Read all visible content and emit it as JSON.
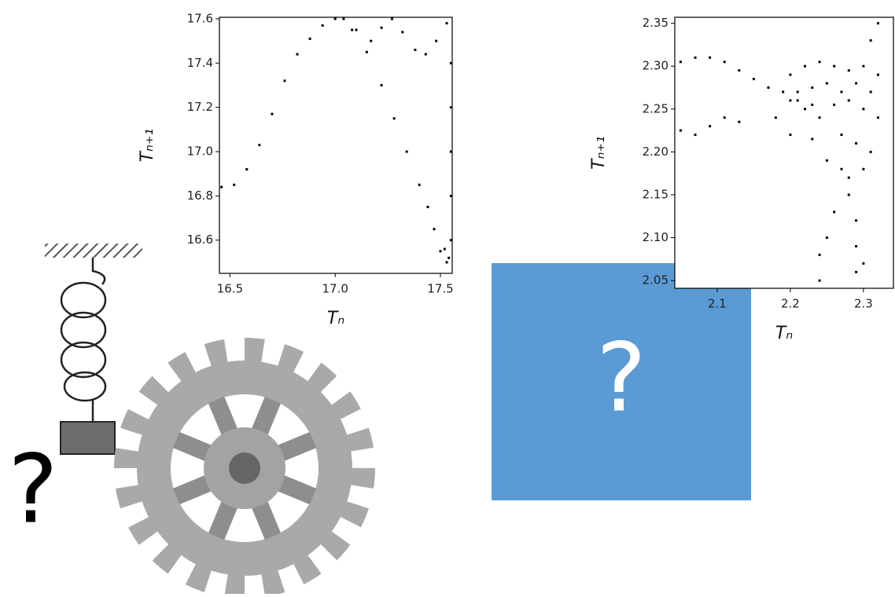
{
  "chart_data": [
    {
      "type": "scatter",
      "xlabel": "Tₙ",
      "ylabel": "Tₙ₊₁",
      "color": "#000000",
      "xlim": [
        16.45,
        17.556
      ],
      "ylim": [
        16.45,
        17.607
      ],
      "xticks": [
        16.5,
        {
          "value": 17,
          "label": "17.0"
        },
        17.5
      ],
      "yticks": [
        16.6,
        16.8,
        {
          "value": 17,
          "label": "17.0"
        },
        17.2,
        17.4,
        17.6
      ],
      "x": [
        16.46,
        16.52,
        16.58,
        16.64,
        16.7,
        16.76,
        16.82,
        16.88,
        16.94,
        17.0,
        17.04,
        17.08,
        17.15,
        17.22,
        17.28,
        17.34,
        17.4,
        17.44,
        17.47,
        17.5,
        17.53,
        17.1,
        17.17,
        17.22,
        17.27,
        17.32,
        17.38,
        17.43,
        17.48,
        17.53,
        17.55,
        17.55,
        17.55,
        17.55,
        17.55,
        17.54,
        17.52
      ],
      "values": [
        16.84,
        16.85,
        16.92,
        17.03,
        17.17,
        17.32,
        17.44,
        17.51,
        17.57,
        17.6,
        17.6,
        17.55,
        17.45,
        17.3,
        17.15,
        17.0,
        16.85,
        16.75,
        16.65,
        16.55,
        16.5,
        17.55,
        17.5,
        17.56,
        17.6,
        17.54,
        17.46,
        17.44,
        17.5,
        17.58,
        17.4,
        17.2,
        17.0,
        16.8,
        16.6,
        16.52,
        16.56
      ]
    },
    {
      "type": "scatter",
      "xlabel": "Tₙ",
      "ylabel": "Tₙ₊₁",
      "color": "#000000",
      "xlim": [
        2.042,
        2.341
      ],
      "ylim": [
        2.041,
        2.357
      ],
      "xticks": [
        2.1,
        2.2,
        2.3
      ],
      "yticks": [
        2.05,
        {
          "value": 2.1,
          "label": "2.10"
        },
        2.15,
        {
          "value": 2.2,
          "label": "2.20"
        },
        2.25,
        {
          "value": 2.3,
          "label": "2.30"
        },
        2.35
      ],
      "x": [
        2.05,
        2.07,
        2.09,
        2.11,
        2.13,
        2.15,
        2.17,
        2.19,
        2.21,
        2.23,
        2.05,
        2.07,
        2.09,
        2.11,
        2.13,
        2.2,
        2.22,
        2.24,
        2.26,
        2.28,
        2.3,
        2.32,
        2.21,
        2.23,
        2.25,
        2.27,
        2.29,
        2.31,
        2.22,
        2.24,
        2.26,
        2.28,
        2.3,
        2.32,
        2.2,
        2.23,
        2.27,
        2.29,
        2.31,
        2.25,
        2.27,
        2.28,
        2.3,
        2.28,
        2.29,
        2.29,
        2.3,
        2.29,
        2.25,
        2.24,
        2.24,
        2.26,
        2.32,
        2.31,
        2.2,
        2.18
      ],
      "values": [
        2.305,
        2.31,
        2.31,
        2.305,
        2.295,
        2.285,
        2.275,
        2.27,
        2.26,
        2.255,
        2.225,
        2.22,
        2.23,
        2.24,
        2.235,
        2.29,
        2.3,
        2.305,
        2.3,
        2.295,
        2.3,
        2.29,
        2.27,
        2.275,
        2.28,
        2.27,
        2.28,
        2.27,
        2.25,
        2.24,
        2.255,
        2.26,
        2.25,
        2.24,
        2.22,
        2.215,
        2.22,
        2.21,
        2.2,
        2.19,
        2.18,
        2.17,
        2.18,
        2.15,
        2.12,
        2.09,
        2.07,
        2.06,
        2.1,
        2.08,
        2.05,
        2.13,
        2.35,
        2.33,
        2.26,
        2.24
      ]
    }
  ],
  "labels": {
    "left_question": "?",
    "box_question": "?"
  }
}
